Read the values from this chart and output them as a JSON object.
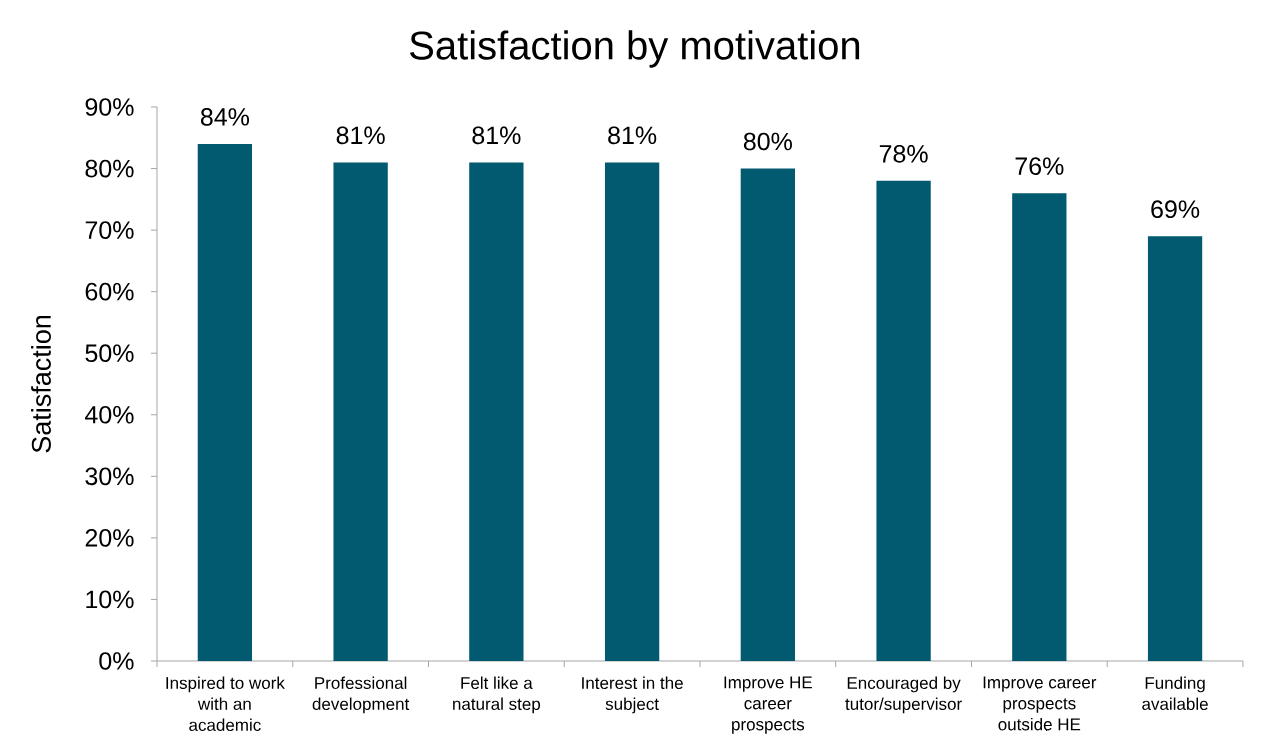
{
  "chart_data": {
    "type": "bar",
    "title": "Satisfaction by motivation",
    "ylabel": "Satisfaction",
    "categories": [
      "Inspired to work with an academic",
      "Professional development",
      "Felt like a natural step",
      "Interest in the subject",
      "Improve HE career prospects",
      "Encouraged by tutor/supervisor",
      "Improve career prospects outside HE",
      "Funding available"
    ],
    "values": [
      84,
      81,
      81,
      81,
      80,
      78,
      76,
      69
    ],
    "value_labels": [
      "84%",
      "81%",
      "81%",
      "81%",
      "80%",
      "78%",
      "76%",
      "69%"
    ],
    "color": "#015a6f",
    "ylim": [
      0,
      90
    ],
    "yticks": [
      {
        "value": 0,
        "label": "0%"
      },
      {
        "value": 10,
        "label": "10%"
      },
      {
        "value": 20,
        "label": "20%"
      },
      {
        "value": 30,
        "label": "30%"
      },
      {
        "value": 40,
        "label": "40%"
      },
      {
        "value": 50,
        "label": "50%"
      },
      {
        "value": 60,
        "label": "60%"
      },
      {
        "value": 70,
        "label": "70%"
      },
      {
        "value": 80,
        "label": "80%"
      },
      {
        "value": 90,
        "label": "90%"
      }
    ]
  }
}
